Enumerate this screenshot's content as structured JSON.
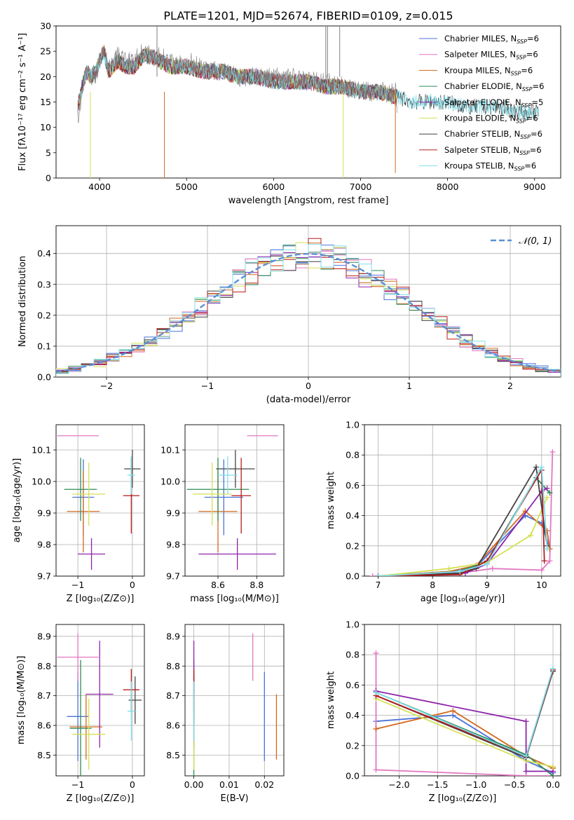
{
  "figure_title": "PLATE=1201, MJD=52674, FIBERID=0109, z=0.015",
  "colors": {
    "Chabrier MILES": "#4c72d8",
    "Salpeter MILES": "#e377c2",
    "Kroupa MILES": "#d2691e",
    "Chabrier ELODIE": "#2e8b57",
    "Salpeter ELODIE": "#8e24aa",
    "Kroupa ELODIE": "#d4e157",
    "Chabrier STELIB": "#444444",
    "Salpeter STELIB": "#b71c1c",
    "Kroupa STELIB": "#80deea"
  },
  "legend1": [
    {
      "name": "Chabrier MILES",
      "base": "Chabrier MILES, N",
      "sub": "SSP",
      "tail": "=6"
    },
    {
      "name": "Salpeter MILES",
      "base": "Salpeter MILES, N",
      "sub": "SSP",
      "tail": "=6"
    },
    {
      "name": "Kroupa MILES",
      "base": "Kroupa MILES, N",
      "sub": "SSP",
      "tail": "=6"
    },
    {
      "name": "Chabrier ELODIE",
      "base": "Chabrier ELODIE, N",
      "sub": "SSP",
      "tail": "=6"
    },
    {
      "name": "Salpeter ELODIE",
      "base": "Salpeter ELODIE, N",
      "sub": "SSP",
      "tail": "=5"
    },
    {
      "name": "Kroupa ELODIE",
      "base": "Kroupa ELODIE, N",
      "sub": "SSP",
      "tail": "=6"
    },
    {
      "name": "Chabrier STELIB",
      "base": "Chabrier STELIB, N",
      "sub": "SSP",
      "tail": "=6"
    },
    {
      "name": "Salpeter STELIB",
      "base": "Salpeter STELIB, N",
      "sub": "SSP",
      "tail": "=6"
    },
    {
      "name": "Kroupa STELIB",
      "base": "Kroupa STELIB, N",
      "sub": "SSP",
      "tail": "=6"
    }
  ],
  "chart_data": [
    {
      "id": "spectrum",
      "type": "line",
      "xlabel": "wavelength [Angstrom, rest frame]",
      "ylabel": "Flux [fλ10⁻¹⁷ erg cm⁻² s⁻¹ A⁻¹]",
      "xlim": [
        3500,
        9300
      ],
      "ylim": [
        0,
        30
      ],
      "xticks": [
        4000,
        5000,
        6000,
        7000,
        8000,
        9000
      ],
      "yticks": [
        0,
        5,
        10,
        15,
        20,
        25,
        30
      ],
      "data_series": {
        "name": "",
        "color": "#7f7f7f",
        "x": [
          3750,
          3800,
          3850,
          3900,
          3950,
          4000,
          4050,
          4100,
          4150,
          4200,
          4300,
          4400,
          4500,
          4600,
          4700,
          4800,
          4900,
          5000,
          5200,
          5400,
          5600,
          5800,
          6000,
          6200,
          6400,
          6600,
          6800,
          7000,
          7200,
          7400,
          7420
        ],
        "y": [
          12,
          17,
          22,
          20,
          20,
          23,
          26,
          21,
          23,
          24,
          23,
          23,
          25,
          24,
          24,
          23,
          22,
          23,
          22,
          21,
          20,
          20,
          20,
          20,
          19,
          19,
          18,
          17,
          17,
          17,
          14
        ]
      },
      "model_series": {
        "x": [
          3750,
          3800,
          3850,
          3900,
          3950,
          4000,
          4050,
          4100,
          4150,
          4200,
          4300,
          4400,
          4500,
          4600,
          4700,
          4800,
          4900,
          5000,
          5200,
          5400,
          5600,
          5800,
          6000,
          6200,
          6400,
          6600,
          6800,
          7000,
          7200,
          7400,
          7420,
          7600,
          7800,
          8000,
          8200,
          8400,
          8600,
          8800,
          9000,
          9050
        ],
        "y": [
          14,
          18,
          21,
          20,
          21,
          23,
          25,
          21,
          22,
          23,
          22,
          22,
          24,
          24,
          23,
          22,
          22,
          22,
          21,
          21,
          20,
          20,
          19,
          19,
          19,
          18,
          18,
          17,
          17,
          16,
          16,
          15,
          15,
          15,
          14,
          14,
          14,
          13,
          13,
          13
        ]
      }
    },
    {
      "id": "hist",
      "type": "step",
      "xlabel": "(data-model)/error",
      "ylabel": "Normed distribution",
      "xlim": [
        -2.5,
        2.5
      ],
      "ylim": [
        0,
        0.49
      ],
      "xticks": [
        -2,
        -1,
        0,
        1,
        2
      ],
      "yticks": [
        0.0,
        0.1,
        0.2,
        0.3,
        0.4
      ],
      "legend": {
        "label": "𝒩(0, 1)",
        "color": "#5b8fd6"
      },
      "bins": [
        -2.5,
        2.5,
        40
      ]
    },
    {
      "id": "age_Z",
      "type": "errorbar",
      "xlabel": "Z [log₁₀(Z/Z⊙)]",
      "ylabel": "age  [log₁₀(age/yr)]",
      "xlim": [
        -1.4,
        0.22
      ],
      "ylim": [
        9.7,
        10.18
      ],
      "xticks": [
        -1,
        0
      ],
      "yticks": [
        9.7,
        9.8,
        9.9,
        10.0,
        10.1
      ],
      "points": [
        {
          "name": "Chabrier MILES",
          "x": -0.9,
          "xerr": 0.2,
          "y": 9.95,
          "yerr": 0.12
        },
        {
          "name": "Salpeter MILES",
          "x": -1.0,
          "xerr": 0.38,
          "y": 10.145,
          "yerr": 0.0
        },
        {
          "name": "Kroupa MILES",
          "x": -0.9,
          "xerr": 0.3,
          "y": 9.905,
          "yerr": 0.13
        },
        {
          "name": "Chabrier ELODIE",
          "x": -0.95,
          "xerr": 0.3,
          "y": 9.975,
          "yerr": 0.1
        },
        {
          "name": "Salpeter ELODIE",
          "x": -0.75,
          "xerr": 0.25,
          "y": 9.77,
          "yerr": 0.05
        },
        {
          "name": "Kroupa ELODIE",
          "x": -0.8,
          "xerr": 0.3,
          "y": 9.96,
          "yerr": 0.1
        },
        {
          "name": "Chabrier STELIB",
          "x": 0.0,
          "xerr": 0.15,
          "y": 10.04,
          "yerr": 0.06
        },
        {
          "name": "Salpeter STELIB",
          "x": -0.02,
          "xerr": 0.15,
          "y": 9.955,
          "yerr": 0.12
        },
        {
          "name": "Kroupa STELIB",
          "x": -0.02,
          "xerr": 0.07,
          "y": 10.02,
          "yerr": 0.06
        }
      ]
    },
    {
      "id": "age_mass",
      "type": "errorbar",
      "xlabel": "mass [log₁₀(M/M⊙)]",
      "ylabel": "",
      "xlim": [
        8.43,
        8.94
      ],
      "ylim": [
        9.7,
        10.18
      ],
      "xticks": [
        8.6,
        8.8
      ],
      "yticks": [
        9.7,
        9.8,
        9.9,
        10.0,
        10.1
      ],
      "points": [
        {
          "name": "Chabrier MILES",
          "x": 8.63,
          "xerr": 0.1,
          "y": 9.95,
          "yerr": 0.12
        },
        {
          "name": "Salpeter MILES",
          "x": 8.83,
          "xerr": 0.08,
          "y": 10.145,
          "yerr": 0.0
        },
        {
          "name": "Kroupa MILES",
          "x": 8.6,
          "xerr": 0.1,
          "y": 9.905,
          "yerr": 0.13
        },
        {
          "name": "Chabrier ELODIE",
          "x": 8.6,
          "xerr": 0.16,
          "y": 9.975,
          "yerr": 0.1
        },
        {
          "name": "Salpeter ELODIE",
          "x": 8.7,
          "xerr": 0.2,
          "y": 9.77,
          "yerr": 0.05
        },
        {
          "name": "Kroupa ELODIE",
          "x": 8.57,
          "xerr": 0.1,
          "y": 9.96,
          "yerr": 0.1
        },
        {
          "name": "Chabrier STELIB",
          "x": 8.69,
          "xerr": 0.1,
          "y": 10.04,
          "yerr": 0.06
        },
        {
          "name": "Salpeter STELIB",
          "x": 8.72,
          "xerr": 0.05,
          "y": 9.955,
          "yerr": 0.12
        },
        {
          "name": "Kroupa STELIB",
          "x": 8.65,
          "xerr": 0.05,
          "y": 10.02,
          "yerr": 0.06
        }
      ]
    },
    {
      "id": "mw_age",
      "type": "line",
      "xlabel": "age  [log₁₀(age/yr)]",
      "ylabel": "mass weight",
      "xlim": [
        6.75,
        10.35
      ],
      "ylim": [
        0,
        1.0
      ],
      "xticks": [
        7,
        8,
        9,
        10
      ],
      "yticks": [
        0.0,
        0.2,
        0.4,
        0.6,
        0.8,
        1.0
      ],
      "series": [
        {
          "name": "Chabrier MILES",
          "x": [
            7.0,
            8.3,
            8.8,
            9.7,
            10.0,
            10.15
          ],
          "y": [
            0.0,
            0.03,
            0.06,
            0.4,
            0.35,
            0.18
          ]
        },
        {
          "name": "Salpeter MILES",
          "x": [
            6.9,
            8.5,
            9.1,
            10.0,
            10.15,
            10.2
          ],
          "y": [
            0.0,
            0.02,
            0.05,
            0.04,
            0.1,
            0.82
          ]
        },
        {
          "name": "Kroupa MILES",
          "x": [
            7.0,
            8.3,
            8.8,
            9.7,
            10.1,
            10.15
          ],
          "y": [
            0.0,
            0.03,
            0.07,
            0.43,
            0.3,
            0.18
          ]
        },
        {
          "name": "Chabrier ELODIE",
          "x": [
            7.0,
            8.5,
            9.0,
            9.9,
            10.15
          ],
          "y": [
            0.0,
            0.03,
            0.1,
            0.65,
            0.55
          ]
        },
        {
          "name": "Salpeter ELODIE",
          "x": [
            7.0,
            8.6,
            9.0,
            10.0,
            10.1
          ],
          "y": [
            0.0,
            0.02,
            0.08,
            0.56,
            0.58
          ]
        },
        {
          "name": "Kroupa ELODIE",
          "x": [
            7.0,
            8.3,
            9.0,
            9.8,
            10.1
          ],
          "y": [
            0.0,
            0.05,
            0.09,
            0.27,
            0.52
          ]
        },
        {
          "name": "Chabrier STELIB",
          "x": [
            7.0,
            8.5,
            8.8,
            9.9,
            10.1
          ],
          "y": [
            0.0,
            0.02,
            0.05,
            0.72,
            0.2
          ]
        },
        {
          "name": "Salpeter STELIB",
          "x": [
            7.0,
            8.5,
            9.0,
            10.0,
            10.05
          ],
          "y": [
            0.0,
            0.01,
            0.1,
            0.7,
            0.1
          ]
        },
        {
          "name": "Kroupa STELIB",
          "x": [
            7.0,
            8.5,
            9.0,
            10.0,
            10.1
          ],
          "y": [
            0.0,
            0.03,
            0.08,
            0.72,
            0.18
          ]
        }
      ]
    },
    {
      "id": "mass_Z",
      "type": "errorbar",
      "xlabel": "Z [log₁₀(Z/Z⊙)]",
      "ylabel": "mass [log₁₀(M/M⊙)]",
      "xlim": [
        -1.4,
        0.22
      ],
      "ylim": [
        8.43,
        8.94
      ],
      "xticks": [
        -1,
        0
      ],
      "yticks": [
        8.5,
        8.6,
        8.7,
        8.8,
        8.9
      ],
      "points": [
        {
          "name": "Chabrier MILES",
          "x": -1.0,
          "xerr": 0.2,
          "y": 8.63,
          "yerr": 0.15
        },
        {
          "name": "Salpeter MILES",
          "x": -1.0,
          "xerr": 0.38,
          "y": 8.83,
          "yerr": 0.08
        },
        {
          "name": "Kroupa MILES",
          "x": -0.85,
          "xerr": 0.3,
          "y": 8.595,
          "yerr": 0.11
        },
        {
          "name": "Chabrier ELODIE",
          "x": -0.95,
          "xerr": 0.2,
          "y": 8.59,
          "yerr": 0.23
        },
        {
          "name": "Salpeter ELODIE",
          "x": -0.6,
          "xerr": 0.25,
          "y": 8.705,
          "yerr": 0.18
        },
        {
          "name": "Kroupa ELODIE",
          "x": -0.8,
          "xerr": 0.3,
          "y": 8.57,
          "yerr": 0.12
        },
        {
          "name": "Chabrier STELIB",
          "x": 0.05,
          "xerr": 0.12,
          "y": 8.685,
          "yerr": 0.08
        },
        {
          "name": "Salpeter STELIB",
          "x": -0.02,
          "xerr": 0.15,
          "y": 8.72,
          "yerr": 0.07
        },
        {
          "name": "Kroupa STELIB",
          "x": -0.02,
          "xerr": 0.07,
          "y": 8.648,
          "yerr": 0.1
        }
      ]
    },
    {
      "id": "mass_ebv",
      "type": "errorbar",
      "xlabel": "E(B-V)",
      "ylabel": "",
      "xlim": [
        -0.0025,
        0.0255
      ],
      "ylim": [
        8.43,
        8.94
      ],
      "xticks": [
        0.0,
        0.01,
        0.02
      ],
      "yticks": [
        8.5,
        8.6,
        8.7,
        8.8,
        8.9
      ],
      "points": [
        {
          "name": "Chabrier MILES",
          "x": 0.02,
          "xerr": 0.0,
          "y": 8.63,
          "yerr": 0.15
        },
        {
          "name": "Salpeter MILES",
          "x": 0.0167,
          "xerr": 0.0,
          "y": 8.83,
          "yerr": 0.08
        },
        {
          "name": "Kroupa MILES",
          "x": 0.0234,
          "xerr": 0.0,
          "y": 8.595,
          "yerr": 0.11
        },
        {
          "name": "Chabrier ELODIE",
          "x": 0.0,
          "xerr": 0.0,
          "y": 8.59,
          "yerr": 0.23
        },
        {
          "name": "Salpeter ELODIE",
          "x": 0.0,
          "xerr": 0.0,
          "y": 8.705,
          "yerr": 0.18
        },
        {
          "name": "Kroupa ELODIE",
          "x": 0.0,
          "xerr": 0.0,
          "y": 8.57,
          "yerr": 0.12
        },
        {
          "name": "Chabrier STELIB",
          "x": 0.0,
          "xerr": 0.0,
          "y": 8.685,
          "yerr": 0.08
        },
        {
          "name": "Salpeter STELIB",
          "x": 0.0,
          "xerr": 0.0,
          "y": 8.72,
          "yerr": 0.07
        },
        {
          "name": "Kroupa STELIB",
          "x": 0.0,
          "xerr": 0.0,
          "y": 8.648,
          "yerr": 0.1
        }
      ]
    },
    {
      "id": "mw_Z",
      "type": "line",
      "xlabel": "Z [log₁₀(Z/Z⊙)]",
      "ylabel": "mass weight",
      "xlim": [
        -2.45,
        0.1
      ],
      "ylim": [
        0,
        1.0
      ],
      "xticks": [
        -2.0,
        -1.5,
        -1.0,
        -0.5,
        0.0
      ],
      "yticks": [
        0.0,
        0.2,
        0.4,
        0.6,
        0.8,
        1.0
      ],
      "series": [
        {
          "name": "Chabrier MILES",
          "x": [
            -2.3,
            -1.3,
            -0.35,
            0.0
          ],
          "y": [
            0.36,
            0.4,
            0.1,
            0.02
          ]
        },
        {
          "name": "Salpeter MILES",
          "x": [
            -2.3,
            -2.3,
            -0.35,
            0.0,
            0.0
          ],
          "y": [
            0.81,
            0.04,
            0.0,
            0.0,
            0.06
          ]
        },
        {
          "name": "Kroupa MILES",
          "x": [
            -2.3,
            -1.3,
            -0.35,
            0.0
          ],
          "y": [
            0.31,
            0.43,
            0.13,
            0.05
          ]
        },
        {
          "name": "Chabrier ELODIE",
          "x": [
            -2.3,
            -0.35,
            0.0
          ],
          "y": [
            0.55,
            0.14,
            0.0
          ]
        },
        {
          "name": "Salpeter ELODIE",
          "x": [
            -2.3,
            -0.35,
            -0.35,
            0.0
          ],
          "y": [
            0.56,
            0.36,
            0.03,
            0.03
          ]
        },
        {
          "name": "Kroupa ELODIE",
          "x": [
            -2.3,
            -0.35,
            0.0
          ],
          "y": [
            0.51,
            0.1,
            0.06
          ]
        },
        {
          "name": "Chabrier STELIB",
          "x": [
            -2.3,
            -0.35,
            0.0
          ],
          "y": [
            0.53,
            0.12,
            0.69
          ]
        },
        {
          "name": "Salpeter STELIB",
          "x": [
            -2.3,
            -0.35,
            0.0
          ],
          "y": [
            0.53,
            0.13,
            0.7
          ]
        },
        {
          "name": "Kroupa STELIB",
          "x": [
            -2.3,
            -0.35,
            0.0
          ],
          "y": [
            0.55,
            0.13,
            0.71
          ]
        }
      ]
    }
  ]
}
